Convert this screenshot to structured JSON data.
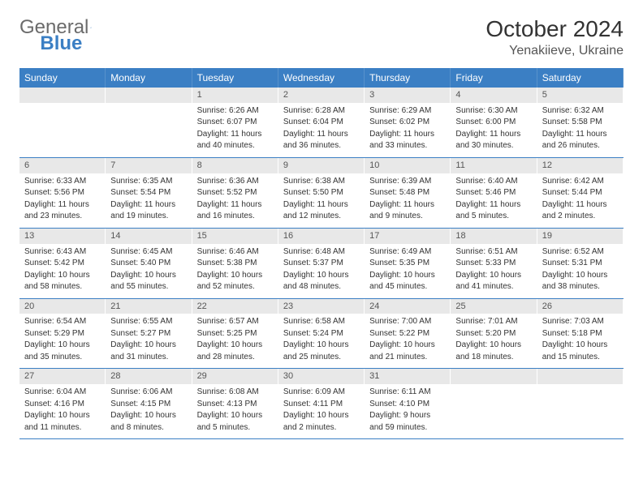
{
  "logo": {
    "text1": "General",
    "text2": "Blue"
  },
  "title": "October 2024",
  "location": "Yenakiieve, Ukraine",
  "colors": {
    "header_bg": "#3b7fc4",
    "header_fg": "#ffffff",
    "daynum_bg": "#e8e8e8",
    "border": "#3b7fc4"
  },
  "daysOfWeek": [
    "Sunday",
    "Monday",
    "Tuesday",
    "Wednesday",
    "Thursday",
    "Friday",
    "Saturday"
  ],
  "weeks": [
    [
      {
        "n": "",
        "empty": true
      },
      {
        "n": "",
        "empty": true
      },
      {
        "n": "1",
        "sr": "Sunrise: 6:26 AM",
        "ss": "Sunset: 6:07 PM",
        "dl1": "Daylight: 11 hours",
        "dl2": "and 40 minutes."
      },
      {
        "n": "2",
        "sr": "Sunrise: 6:28 AM",
        "ss": "Sunset: 6:04 PM",
        "dl1": "Daylight: 11 hours",
        "dl2": "and 36 minutes."
      },
      {
        "n": "3",
        "sr": "Sunrise: 6:29 AM",
        "ss": "Sunset: 6:02 PM",
        "dl1": "Daylight: 11 hours",
        "dl2": "and 33 minutes."
      },
      {
        "n": "4",
        "sr": "Sunrise: 6:30 AM",
        "ss": "Sunset: 6:00 PM",
        "dl1": "Daylight: 11 hours",
        "dl2": "and 30 minutes."
      },
      {
        "n": "5",
        "sr": "Sunrise: 6:32 AM",
        "ss": "Sunset: 5:58 PM",
        "dl1": "Daylight: 11 hours",
        "dl2": "and 26 minutes."
      }
    ],
    [
      {
        "n": "6",
        "sr": "Sunrise: 6:33 AM",
        "ss": "Sunset: 5:56 PM",
        "dl1": "Daylight: 11 hours",
        "dl2": "and 23 minutes."
      },
      {
        "n": "7",
        "sr": "Sunrise: 6:35 AM",
        "ss": "Sunset: 5:54 PM",
        "dl1": "Daylight: 11 hours",
        "dl2": "and 19 minutes."
      },
      {
        "n": "8",
        "sr": "Sunrise: 6:36 AM",
        "ss": "Sunset: 5:52 PM",
        "dl1": "Daylight: 11 hours",
        "dl2": "and 16 minutes."
      },
      {
        "n": "9",
        "sr": "Sunrise: 6:38 AM",
        "ss": "Sunset: 5:50 PM",
        "dl1": "Daylight: 11 hours",
        "dl2": "and 12 minutes."
      },
      {
        "n": "10",
        "sr": "Sunrise: 6:39 AM",
        "ss": "Sunset: 5:48 PM",
        "dl1": "Daylight: 11 hours",
        "dl2": "and 9 minutes."
      },
      {
        "n": "11",
        "sr": "Sunrise: 6:40 AM",
        "ss": "Sunset: 5:46 PM",
        "dl1": "Daylight: 11 hours",
        "dl2": "and 5 minutes."
      },
      {
        "n": "12",
        "sr": "Sunrise: 6:42 AM",
        "ss": "Sunset: 5:44 PM",
        "dl1": "Daylight: 11 hours",
        "dl2": "and 2 minutes."
      }
    ],
    [
      {
        "n": "13",
        "sr": "Sunrise: 6:43 AM",
        "ss": "Sunset: 5:42 PM",
        "dl1": "Daylight: 10 hours",
        "dl2": "and 58 minutes."
      },
      {
        "n": "14",
        "sr": "Sunrise: 6:45 AM",
        "ss": "Sunset: 5:40 PM",
        "dl1": "Daylight: 10 hours",
        "dl2": "and 55 minutes."
      },
      {
        "n": "15",
        "sr": "Sunrise: 6:46 AM",
        "ss": "Sunset: 5:38 PM",
        "dl1": "Daylight: 10 hours",
        "dl2": "and 52 minutes."
      },
      {
        "n": "16",
        "sr": "Sunrise: 6:48 AM",
        "ss": "Sunset: 5:37 PM",
        "dl1": "Daylight: 10 hours",
        "dl2": "and 48 minutes."
      },
      {
        "n": "17",
        "sr": "Sunrise: 6:49 AM",
        "ss": "Sunset: 5:35 PM",
        "dl1": "Daylight: 10 hours",
        "dl2": "and 45 minutes."
      },
      {
        "n": "18",
        "sr": "Sunrise: 6:51 AM",
        "ss": "Sunset: 5:33 PM",
        "dl1": "Daylight: 10 hours",
        "dl2": "and 41 minutes."
      },
      {
        "n": "19",
        "sr": "Sunrise: 6:52 AM",
        "ss": "Sunset: 5:31 PM",
        "dl1": "Daylight: 10 hours",
        "dl2": "and 38 minutes."
      }
    ],
    [
      {
        "n": "20",
        "sr": "Sunrise: 6:54 AM",
        "ss": "Sunset: 5:29 PM",
        "dl1": "Daylight: 10 hours",
        "dl2": "and 35 minutes."
      },
      {
        "n": "21",
        "sr": "Sunrise: 6:55 AM",
        "ss": "Sunset: 5:27 PM",
        "dl1": "Daylight: 10 hours",
        "dl2": "and 31 minutes."
      },
      {
        "n": "22",
        "sr": "Sunrise: 6:57 AM",
        "ss": "Sunset: 5:25 PM",
        "dl1": "Daylight: 10 hours",
        "dl2": "and 28 minutes."
      },
      {
        "n": "23",
        "sr": "Sunrise: 6:58 AM",
        "ss": "Sunset: 5:24 PM",
        "dl1": "Daylight: 10 hours",
        "dl2": "and 25 minutes."
      },
      {
        "n": "24",
        "sr": "Sunrise: 7:00 AM",
        "ss": "Sunset: 5:22 PM",
        "dl1": "Daylight: 10 hours",
        "dl2": "and 21 minutes."
      },
      {
        "n": "25",
        "sr": "Sunrise: 7:01 AM",
        "ss": "Sunset: 5:20 PM",
        "dl1": "Daylight: 10 hours",
        "dl2": "and 18 minutes."
      },
      {
        "n": "26",
        "sr": "Sunrise: 7:03 AM",
        "ss": "Sunset: 5:18 PM",
        "dl1": "Daylight: 10 hours",
        "dl2": "and 15 minutes."
      }
    ],
    [
      {
        "n": "27",
        "sr": "Sunrise: 6:04 AM",
        "ss": "Sunset: 4:16 PM",
        "dl1": "Daylight: 10 hours",
        "dl2": "and 11 minutes."
      },
      {
        "n": "28",
        "sr": "Sunrise: 6:06 AM",
        "ss": "Sunset: 4:15 PM",
        "dl1": "Daylight: 10 hours",
        "dl2": "and 8 minutes."
      },
      {
        "n": "29",
        "sr": "Sunrise: 6:08 AM",
        "ss": "Sunset: 4:13 PM",
        "dl1": "Daylight: 10 hours",
        "dl2": "and 5 minutes."
      },
      {
        "n": "30",
        "sr": "Sunrise: 6:09 AM",
        "ss": "Sunset: 4:11 PM",
        "dl1": "Daylight: 10 hours",
        "dl2": "and 2 minutes."
      },
      {
        "n": "31",
        "sr": "Sunrise: 6:11 AM",
        "ss": "Sunset: 4:10 PM",
        "dl1": "Daylight: 9 hours",
        "dl2": "and 59 minutes."
      },
      {
        "n": "",
        "empty": true
      },
      {
        "n": "",
        "empty": true
      }
    ]
  ]
}
